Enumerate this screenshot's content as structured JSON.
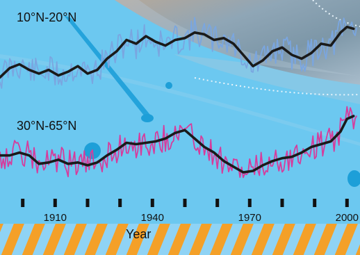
{
  "chart_data": {
    "type": "line",
    "title": "",
    "xlabel": "Year",
    "ylabel": "",
    "xlim": [
      1893,
      2004
    ],
    "x_ticks": [
      1900,
      1910,
      1920,
      1930,
      1940,
      1950,
      1960,
      1970,
      1980,
      1990,
      2000
    ],
    "x_tick_labels": [
      {
        "x": 1910,
        "label": "1910"
      },
      {
        "x": 1940,
        "label": "1940"
      },
      {
        "x": 1970,
        "label": "1970"
      },
      {
        "x": 2000,
        "label": "2000"
      }
    ],
    "panels": [
      {
        "label": "10°N-20°N",
        "annual_color": "#7aa6e0",
        "smooth_color": "#1a1a1a",
        "smoothed": {
          "x": [
            1893,
            1896,
            1899,
            1902,
            1905,
            1908,
            1911,
            1914,
            1917,
            1920,
            1923,
            1926,
            1929,
            1932,
            1935,
            1938,
            1941,
            1944,
            1947,
            1950,
            1953,
            1956,
            1959,
            1962,
            1965,
            1968,
            1971,
            1974,
            1977,
            1980,
            1983,
            1986,
            1989,
            1992,
            1995,
            1998,
            2000,
            2002
          ],
          "y": [
            -0.3,
            -0.05,
            0.05,
            -0.1,
            -0.2,
            -0.1,
            -0.25,
            -0.15,
            0.0,
            -0.2,
            -0.1,
            0.2,
            0.4,
            0.7,
            0.6,
            0.8,
            0.65,
            0.55,
            0.7,
            0.75,
            0.9,
            0.85,
            0.7,
            0.75,
            0.6,
            0.3,
            0.0,
            0.15,
            0.4,
            0.5,
            0.3,
            0.2,
            0.35,
            0.6,
            0.55,
            0.9,
            1.05,
            1.0
          ]
        }
      },
      {
        "label": "30°N-65°N",
        "annual_color": "#d63c9c",
        "smooth_color": "#1a1a1a",
        "smoothed": {
          "x": [
            1893,
            1896,
            1899,
            1902,
            1905,
            1908,
            1911,
            1914,
            1917,
            1920,
            1923,
            1926,
            1929,
            1932,
            1935,
            1938,
            1941,
            1944,
            1947,
            1950,
            1953,
            1956,
            1959,
            1962,
            1965,
            1968,
            1971,
            1974,
            1977,
            1980,
            1983,
            1986,
            1989,
            1992,
            1995,
            1998,
            2000,
            2002
          ],
          "y": [
            0.1,
            0.1,
            0.2,
            0.1,
            -0.2,
            -0.15,
            -0.05,
            -0.2,
            -0.15,
            -0.25,
            -0.15,
            0.1,
            0.3,
            0.55,
            0.5,
            0.55,
            0.6,
            0.7,
            0.9,
            1.0,
            0.7,
            0.4,
            0.2,
            -0.1,
            -0.3,
            -0.5,
            -0.45,
            -0.25,
            -0.1,
            0.0,
            0.05,
            0.2,
            0.4,
            0.5,
            0.6,
            0.95,
            1.4,
            1.5
          ]
        }
      }
    ]
  },
  "colors": {
    "background": "#6cc8f0",
    "photo": "#93a7b4",
    "stripe_orange": "#f4a028",
    "stripe_light": "#8fd3f5"
  }
}
